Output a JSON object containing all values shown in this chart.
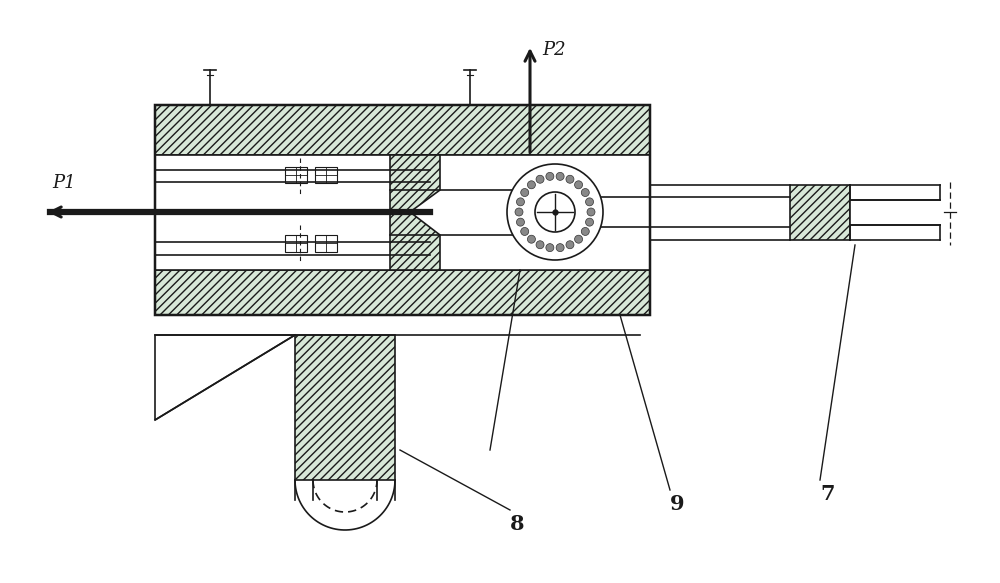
{
  "bg_color": "#ffffff",
  "line_color": "#1a1a1a",
  "fig_width": 10.0,
  "fig_height": 5.83,
  "dpi": 100,
  "label_fontsize": 13
}
